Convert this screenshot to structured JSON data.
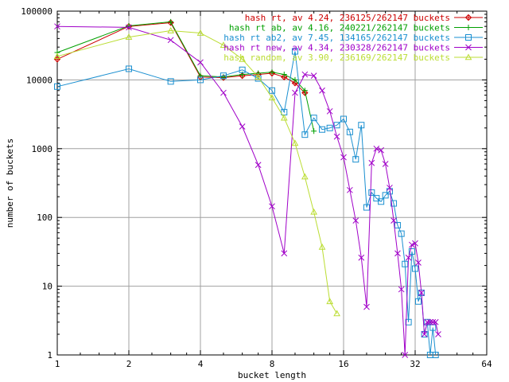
{
  "chart_data": {
    "type": "line",
    "title": "",
    "xlabel": "bucket length",
    "ylabel": "number of buckets",
    "x_scale": "log2",
    "y_scale": "log10",
    "xlim": [
      1,
      64
    ],
    "ylim": [
      1,
      100000
    ],
    "x_ticks": [
      1,
      2,
      4,
      8,
      16,
      32,
      64
    ],
    "y_ticks": [
      1,
      10,
      100,
      1000,
      10000,
      100000
    ],
    "x_tick_labels": [
      "1",
      "2",
      "4",
      "8",
      "16",
      "32",
      "64"
    ],
    "y_tick_labels": [
      "1",
      "10",
      "100",
      "1000",
      "10000",
      "100000"
    ],
    "grid": true,
    "legend_position": "top-right",
    "series": [
      {
        "name": "hash rt, av 4.24, 236125/262147 buckets",
        "color": "#cc0000",
        "marker": "plus-diamond",
        "points": [
          [
            1,
            20000
          ],
          [
            2,
            60000
          ],
          [
            3,
            68000
          ],
          [
            4,
            11000
          ],
          [
            5,
            10800
          ],
          [
            6,
            11500
          ],
          [
            7,
            12000
          ],
          [
            8,
            12500
          ],
          [
            9,
            11000
          ],
          [
            10,
            9000
          ],
          [
            11,
            6500
          ]
        ]
      },
      {
        "name": "hash rt ab, av 4.16, 240221/262147 buckets",
        "color": "#00a000",
        "marker": "plus",
        "points": [
          [
            1,
            25000
          ],
          [
            2,
            61000
          ],
          [
            3,
            70000
          ],
          [
            4,
            11500
          ],
          [
            5,
            11000
          ],
          [
            6,
            12000
          ],
          [
            7,
            12500
          ],
          [
            8,
            13000
          ],
          [
            9,
            12000
          ],
          [
            10,
            10000
          ],
          [
            11,
            7000
          ],
          [
            12,
            1800
          ]
        ]
      },
      {
        "name": "hash rt ab2, av 7.45, 134165/262147 buckets",
        "color": "#1a8fd0",
        "marker": "square",
        "points": [
          [
            1,
            8000
          ],
          [
            2,
            14500
          ],
          [
            3,
            9500
          ],
          [
            4,
            10000
          ],
          [
            5,
            11500
          ],
          [
            6,
            14000
          ],
          [
            7,
            10500
          ],
          [
            8,
            7000
          ],
          [
            9,
            3400
          ],
          [
            10,
            26000
          ],
          [
            11,
            1600
          ],
          [
            12,
            2800
          ],
          [
            13,
            1900
          ],
          [
            14,
            2000
          ],
          [
            15,
            2200
          ],
          [
            16,
            2700
          ],
          [
            17,
            1750
          ],
          [
            18,
            700
          ],
          [
            19,
            2200
          ],
          [
            20,
            140
          ],
          [
            21,
            230
          ],
          [
            22,
            190
          ],
          [
            23,
            170
          ],
          [
            24,
            210
          ],
          [
            25,
            240
          ],
          [
            26,
            160
          ],
          [
            27,
            77
          ],
          [
            28,
            58
          ],
          [
            29,
            21
          ],
          [
            30,
            3
          ],
          [
            31,
            32
          ],
          [
            32,
            18
          ],
          [
            33,
            6
          ],
          [
            34,
            8
          ],
          [
            35,
            2
          ],
          [
            36,
            3
          ],
          [
            37,
            1
          ],
          [
            38,
            2.5
          ],
          [
            39,
            1
          ]
        ]
      },
      {
        "name": "hash rt new, av 4.34, 230328/262147 buckets",
        "color": "#a000c8",
        "marker": "x",
        "points": [
          [
            1,
            60000
          ],
          [
            2,
            58000
          ],
          [
            3,
            38000
          ],
          [
            4,
            18000
          ],
          [
            5,
            6500
          ],
          [
            6,
            2100
          ],
          [
            7,
            580
          ],
          [
            8,
            145
          ],
          [
            9,
            30
          ],
          [
            10,
            6500
          ],
          [
            11,
            12000
          ],
          [
            12,
            11500
          ],
          [
            13,
            7000
          ],
          [
            14,
            3500
          ],
          [
            15,
            1500
          ],
          [
            16,
            750
          ],
          [
            17,
            250
          ],
          [
            18,
            90
          ],
          [
            19,
            26
          ],
          [
            20,
            5
          ],
          [
            21,
            620
          ],
          [
            22,
            1000
          ],
          [
            23,
            950
          ],
          [
            24,
            600
          ],
          [
            25,
            270
          ],
          [
            26,
            90
          ],
          [
            27,
            30
          ],
          [
            28,
            9
          ],
          [
            29,
            1
          ],
          [
            30,
            26
          ],
          [
            31,
            40
          ],
          [
            32,
            42
          ],
          [
            33,
            22
          ],
          [
            34,
            8
          ],
          [
            35,
            2
          ],
          [
            36,
            3
          ],
          [
            37,
            3
          ],
          [
            38,
            3
          ],
          [
            39,
            3
          ],
          [
            40,
            2
          ]
        ]
      },
      {
        "name": "hash random, av 3.90, 236169/262147 buckets",
        "color": "#bbdd33",
        "marker": "triangle",
        "points": [
          [
            1,
            22000
          ],
          [
            2,
            42000
          ],
          [
            3,
            52000
          ],
          [
            4,
            48000
          ],
          [
            5,
            32000
          ],
          [
            6,
            20000
          ],
          [
            7,
            11000
          ],
          [
            8,
            5500
          ],
          [
            9,
            2800
          ],
          [
            10,
            1200
          ],
          [
            11,
            390
          ],
          [
            12,
            120
          ],
          [
            13,
            37
          ],
          [
            14,
            6
          ],
          [
            15,
            4
          ]
        ]
      }
    ]
  }
}
